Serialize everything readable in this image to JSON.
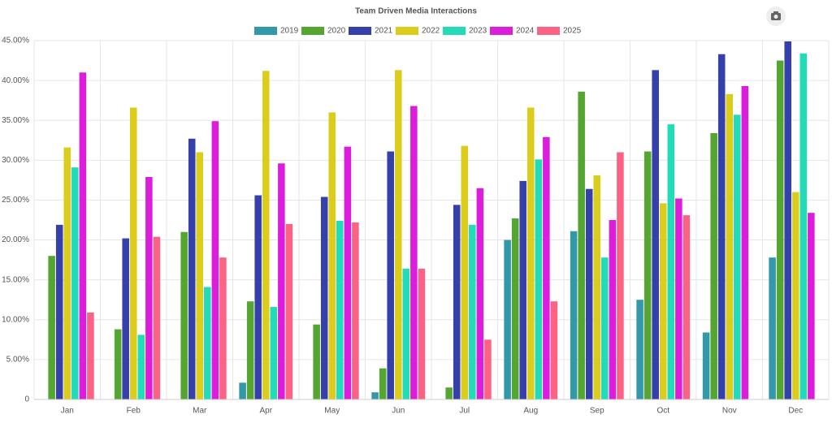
{
  "chart_data": {
    "type": "bar",
    "title": "Team Driven Media Interactions",
    "categories": [
      "Jan",
      "Feb",
      "Mar",
      "Apr",
      "May",
      "Jun",
      "Jul",
      "Aug",
      "Sep",
      "Oct",
      "Nov",
      "Dec"
    ],
    "series": [
      {
        "name": "2019",
        "color": "#3399aa",
        "values": [
          0,
          0,
          0,
          2.1,
          0,
          0.9,
          0,
          20.0,
          21.1,
          12.5,
          8.4,
          17.8
        ]
      },
      {
        "name": "2020",
        "color": "#55a630",
        "values": [
          18.0,
          8.8,
          21.0,
          12.3,
          9.4,
          3.9,
          1.5,
          22.7,
          38.6,
          31.1,
          33.4,
          42.5
        ]
      },
      {
        "name": "2021",
        "color": "#3540aa",
        "values": [
          21.9,
          20.2,
          32.7,
          25.6,
          25.4,
          31.1,
          24.4,
          27.4,
          26.4,
          41.3,
          43.3,
          44.9
        ]
      },
      {
        "name": "2022",
        "color": "#dccc1c",
        "values": [
          31.6,
          36.6,
          31.0,
          41.2,
          36.0,
          41.3,
          31.8,
          36.6,
          28.1,
          24.6,
          38.3,
          26.0
        ]
      },
      {
        "name": "2023",
        "color": "#22dcb8",
        "values": [
          29.1,
          8.1,
          14.1,
          11.6,
          22.4,
          16.4,
          21.9,
          30.1,
          17.8,
          34.5,
          35.7,
          43.4
        ]
      },
      {
        "name": "2024",
        "color": "#dc1edc",
        "values": [
          41.0,
          27.9,
          34.9,
          29.6,
          31.7,
          36.8,
          26.5,
          32.9,
          22.5,
          25.2,
          39.3,
          23.4
        ]
      },
      {
        "name": "2025",
        "color": "#fc6284",
        "values": [
          10.9,
          20.4,
          17.8,
          22.0,
          22.2,
          16.4,
          7.5,
          12.3,
          31.0,
          23.1,
          0,
          0
        ]
      }
    ],
    "ylim": [
      0,
      45
    ],
    "yticks": [
      0,
      {
        "value": 5,
        "label": "5.00%"
      },
      {
        "value": 10,
        "label": "10.00%"
      },
      {
        "value": 15,
        "label": "15.00%"
      },
      {
        "value": 20,
        "label": "20.00%"
      },
      {
        "value": 25,
        "label": "25.00%"
      },
      {
        "value": 30,
        "label": "30.00%"
      },
      {
        "value": 35,
        "label": "35.00%"
      },
      {
        "value": 40,
        "label": "40.00%"
      },
      {
        "value": 45,
        "label": "45.00%"
      }
    ],
    "grid": true
  }
}
